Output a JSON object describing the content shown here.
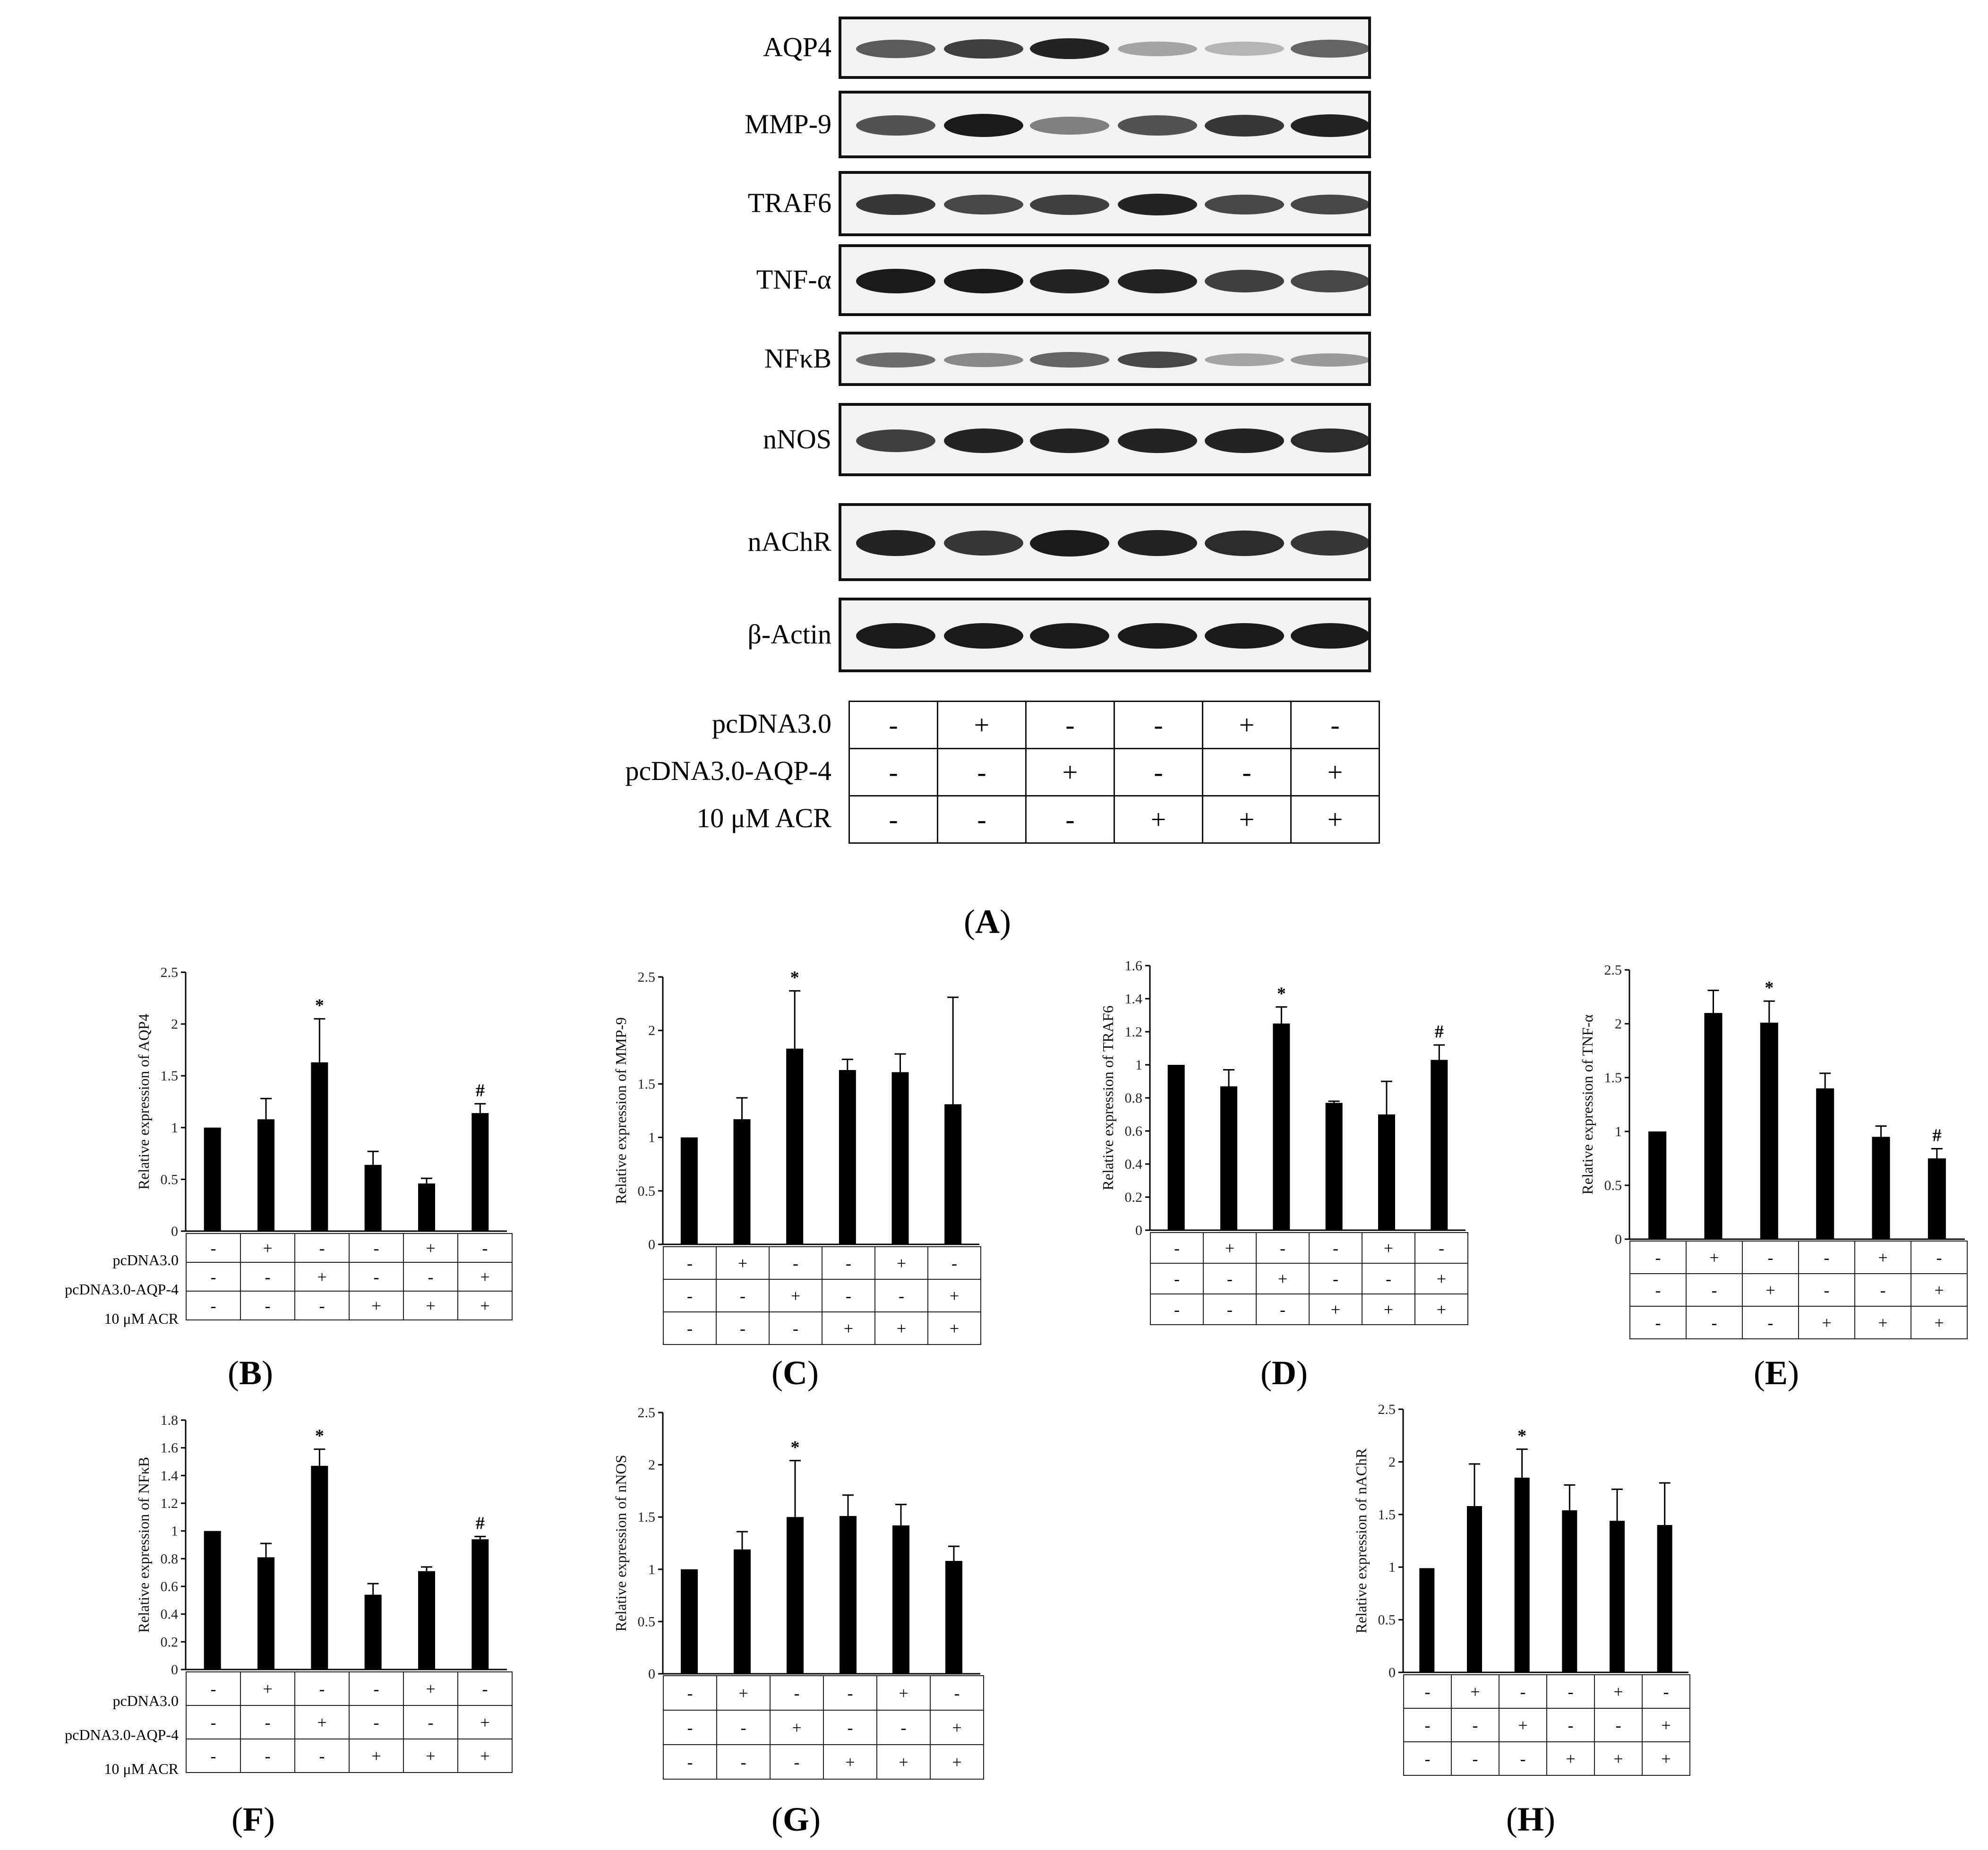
{
  "figure": {
    "blot": {
      "proteins": [
        "AQP4",
        "MMP-9",
        "TRAF6",
        "TNF-α",
        "NFκB",
        "nNOS",
        "nAChR",
        "β-Actin"
      ],
      "band_intensity": [
        [
          0.65,
          0.8,
          0.95,
          0.25,
          0.15,
          0.6
        ],
        [
          0.7,
          1.0,
          0.45,
          0.7,
          0.85,
          0.95
        ],
        [
          0.85,
          0.75,
          0.8,
          0.95,
          0.75,
          0.75
        ],
        [
          1.0,
          1.0,
          0.95,
          0.95,
          0.8,
          0.75
        ],
        [
          0.55,
          0.4,
          0.6,
          0.75,
          0.25,
          0.3
        ],
        [
          0.8,
          0.95,
          0.95,
          0.95,
          0.95,
          0.9
        ],
        [
          0.95,
          0.85,
          1.0,
          0.95,
          0.9,
          0.85
        ],
        [
          1.0,
          1.0,
          1.0,
          1.0,
          1.0,
          1.0
        ]
      ]
    },
    "conditions": {
      "row_labels": [
        "pcDNA3.0",
        "pcDNA3.0-AQP-4",
        "10 μM ACR"
      ],
      "rows": [
        [
          "-",
          "+",
          "-",
          "-",
          "+",
          "-"
        ],
        [
          "-",
          "-",
          "+",
          "-",
          "-",
          "+"
        ],
        [
          "-",
          "-",
          "-",
          "+",
          "+",
          "+"
        ]
      ]
    },
    "panel_labels": {
      "A": "A",
      "B": "B",
      "C": "C",
      "D": "D",
      "E": "E",
      "F": "F",
      "G": "G",
      "H": "H"
    }
  },
  "chart_data": [
    {
      "panel": "B",
      "type": "bar",
      "title": "",
      "xlabel": "",
      "ylabel": "Relative expression of AQP4",
      "ylim": [
        0,
        2.5
      ],
      "yticks": [
        "0",
        "0.5",
        "1",
        "1.5",
        "2",
        "2.5"
      ],
      "values": [
        1.0,
        1.08,
        1.63,
        0.64,
        0.46,
        1.14
      ],
      "errors": [
        0.0,
        0.2,
        0.42,
        0.13,
        0.05,
        0.09
      ],
      "annotations": [
        "",
        "",
        "*",
        "",
        "",
        "#"
      ],
      "show_row_labels": true
    },
    {
      "panel": "C",
      "type": "bar",
      "title": "",
      "xlabel": "",
      "ylabel": "Relative expression of MMP-9",
      "ylim": [
        0,
        2.5
      ],
      "yticks": [
        "0",
        "0.5",
        "1",
        "1.5",
        "2",
        "2.5"
      ],
      "values": [
        1.0,
        1.17,
        1.83,
        1.63,
        1.61,
        1.31
      ],
      "errors": [
        0.0,
        0.2,
        0.54,
        0.1,
        0.17,
        1.0
      ],
      "annotations": [
        "",
        "",
        "*",
        "",
        "",
        ""
      ],
      "show_row_labels": false
    },
    {
      "panel": "D",
      "type": "bar",
      "title": "",
      "xlabel": "",
      "ylabel": "Relative expression of TRAF6",
      "ylim": [
        0,
        1.6
      ],
      "yticks": [
        "0",
        "0.2",
        "0.4",
        "0.6",
        "0.8",
        "1",
        "1.2",
        "1.4",
        "1.6"
      ],
      "values": [
        1.0,
        0.87,
        1.25,
        0.77,
        0.7,
        1.03
      ],
      "errors": [
        0.0,
        0.1,
        0.1,
        0.01,
        0.2,
        0.09
      ],
      "annotations": [
        "",
        "",
        "*",
        "",
        "",
        "#"
      ],
      "show_row_labels": false
    },
    {
      "panel": "E",
      "type": "bar",
      "title": "",
      "xlabel": "",
      "ylabel": "Relative expression of TNF-α",
      "ylim": [
        0,
        2.5
      ],
      "yticks": [
        "0",
        "0.5",
        "1",
        "1.5",
        "2",
        "2.5"
      ],
      "values": [
        1.0,
        2.1,
        2.01,
        1.4,
        0.95,
        0.75
      ],
      "errors": [
        0.0,
        0.21,
        0.2,
        0.14,
        0.1,
        0.09
      ],
      "annotations": [
        "",
        "",
        "*",
        "",
        "",
        "#"
      ],
      "show_row_labels": false
    },
    {
      "panel": "F",
      "type": "bar",
      "title": "",
      "xlabel": "",
      "ylabel": "Relative expression of NFκB",
      "ylim": [
        0,
        1.8
      ],
      "yticks": [
        "0",
        "0.2",
        "0.4",
        "0.6",
        "0.8",
        "1",
        "1.2",
        "1.4",
        "1.6",
        "1.8"
      ],
      "values": [
        1.0,
        0.81,
        1.47,
        0.54,
        0.71,
        0.94
      ],
      "errors": [
        0.0,
        0.1,
        0.12,
        0.08,
        0.03,
        0.02
      ],
      "annotations": [
        "",
        "",
        "*",
        "",
        "",
        "#"
      ],
      "show_row_labels": true
    },
    {
      "panel": "G",
      "type": "bar",
      "title": "",
      "xlabel": "",
      "ylabel": "Relative expression of nNOS",
      "ylim": [
        0,
        2.5
      ],
      "yticks": [
        "0",
        "0.5",
        "1",
        "1.5",
        "2",
        "2.5"
      ],
      "values": [
        1.0,
        1.19,
        1.5,
        1.51,
        1.42,
        1.08
      ],
      "errors": [
        0.0,
        0.17,
        0.54,
        0.2,
        0.2,
        0.14
      ],
      "annotations": [
        "",
        "",
        "*",
        "",
        "",
        ""
      ],
      "show_row_labels": false
    },
    {
      "panel": "H",
      "type": "bar",
      "title": "",
      "xlabel": "",
      "ylabel": "Relative expression of nAChR",
      "ylim": [
        0,
        2.5
      ],
      "yticks": [
        "0",
        "0.5",
        "1",
        "1.5",
        "2",
        "2.5"
      ],
      "values": [
        0.99,
        1.58,
        1.85,
        1.54,
        1.44,
        1.4
      ],
      "errors": [
        0.0,
        0.4,
        0.27,
        0.24,
        0.3,
        0.4
      ],
      "annotations": [
        "",
        "",
        "*",
        "",
        "",
        ""
      ],
      "show_row_labels": false
    }
  ]
}
